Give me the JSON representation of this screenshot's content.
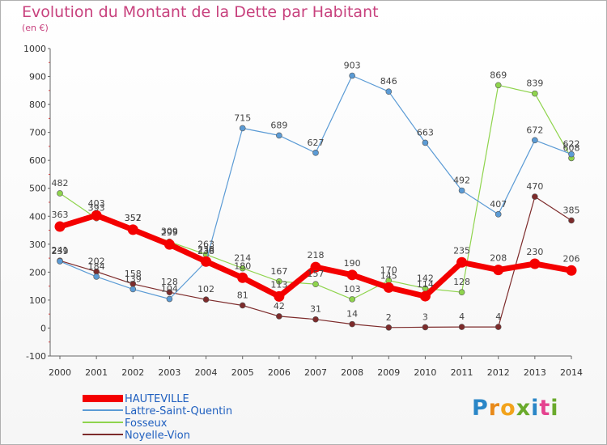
{
  "title": "Evolution du Montant de la Dette par Habitant",
  "unit_label": "(en €)",
  "logo": {
    "text": "Proxiti"
  },
  "chart_data": {
    "type": "line",
    "x": [
      2000,
      2001,
      2002,
      2003,
      2004,
      2005,
      2006,
      2007,
      2008,
      2009,
      2010,
      2011,
      2012,
      2013,
      2014
    ],
    "ylim": [
      -100,
      1000
    ],
    "yticks": [
      -100,
      0,
      100,
      200,
      300,
      400,
      500,
      600,
      700,
      800,
      900,
      1000
    ],
    "grid": false,
    "legend_position": "bottom-left",
    "series": [
      {
        "name": "HAUTEVILLE",
        "color": "#f40000",
        "values": [
          363,
          403,
          352,
          299,
          238,
          180,
          113,
          218,
          190,
          145,
          114,
          235,
          208,
          230,
          206
        ],
        "labels": [
          "363",
          "403",
          "352",
          "299",
          "238",
          "180",
          "113",
          "218",
          "190",
          "145",
          "114",
          "235",
          "208",
          "230",
          "206"
        ]
      },
      {
        "name": "Lattre-Saint-Quentin",
        "color": "#5b9bd5",
        "values": [
          239,
          184,
          139,
          104,
          238,
          715,
          689,
          627,
          903,
          846,
          663,
          492,
          407,
          672,
          622
        ],
        "labels": [
          "239",
          "184",
          "139",
          "104",
          "238",
          "715",
          "689",
          "627",
          "903",
          "846",
          "663",
          "492",
          "407",
          "672",
          "622"
        ]
      },
      {
        "name": "Fosseux",
        "color": "#8fd44d",
        "values": [
          482,
          393,
          357,
          309,
          263,
          214,
          167,
          157,
          103,
          170,
          142,
          128,
          869,
          839,
          608
        ],
        "labels": [
          "482",
          "393",
          "357",
          "309",
          "263",
          "214",
          "167",
          "157",
          "103",
          "170",
          "142",
          "128",
          "869",
          "839",
          "608"
        ]
      },
      {
        "name": "Noyelle-Vion",
        "color": "#7d2b2b",
        "values": [
          241,
          202,
          158,
          128,
          102,
          81,
          42,
          31,
          14,
          2,
          3,
          4,
          4,
          470,
          385
        ],
        "labels": [
          "241",
          "202",
          "158",
          "128",
          "102",
          "81",
          "42",
          "31",
          "14",
          "2",
          "3",
          "4",
          "4",
          "470",
          "385"
        ]
      }
    ]
  }
}
